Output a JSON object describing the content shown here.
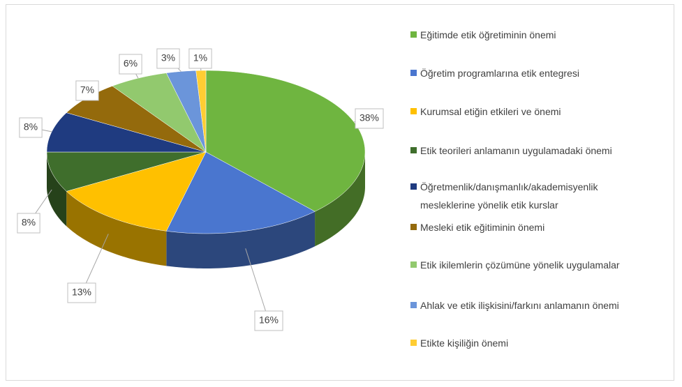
{
  "chart_data": {
    "type": "pie",
    "three_d": true,
    "categories": [
      "Eğitimde etik öğretiminin önemi",
      "Öğretim programlarına etik entegresi",
      "Kurumsal etiğin etkileri ve önemi",
      "Etik teorileri anlamanın uygulamadaki önemi",
      "Öğretmenlik/danışmanlık/akademisyenlik mesleklerine yönelik etik kurslar",
      "Mesleki etik eğitiminin önemi",
      "Etik ikilemlerin çözümüne yönelik uygulamalar",
      "Ahlak ve etik ilişkisini/farkını anlamanın önemi",
      "Etikte kişiliğin önemi"
    ],
    "values": [
      38,
      16,
      13,
      8,
      8,
      7,
      6,
      3,
      1
    ],
    "value_labels": [
      "38%",
      "16%",
      "13%",
      "8%",
      "8%",
      "7%",
      "6%",
      "3%",
      "1%"
    ],
    "colors": [
      "#6fb540",
      "#4a76cf",
      "#ffc000",
      "#3f6e2c",
      "#1f3b80",
      "#946a0c",
      "#92c96e",
      "#6b95da",
      "#ffcd33"
    ],
    "legend": "right"
  }
}
